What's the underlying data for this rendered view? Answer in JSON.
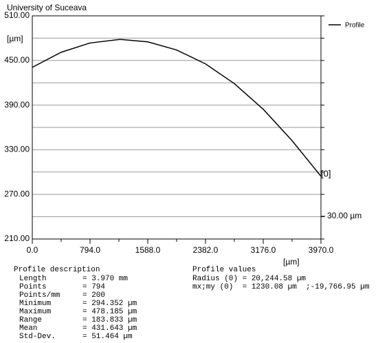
{
  "chart_data": {
    "type": "line",
    "title": "University of Suceava",
    "y_label": "[µm]",
    "x_label": "[µm]",
    "x": [
      0,
      397,
      794,
      1191,
      1230.08,
      1588,
      1985,
      2382,
      2779,
      3176,
      3573,
      3970
    ],
    "series": [
      {
        "name": "Profile",
        "color": "#000000",
        "values": [
          440.78,
          461.04,
          473.49,
          478.15,
          478.185,
          475.02,
          464.11,
          445.41,
          418.85,
          384.45,
          342.16,
          294.352
        ]
      }
    ],
    "xlim": [
      0,
      3970
    ],
    "xticks": [
      {
        "value": 0,
        "label": "0.0"
      },
      {
        "value": 794,
        "label": "794.0"
      },
      {
        "value": 1588,
        "label": "1588.0"
      },
      {
        "value": 2382,
        "label": "2382.0"
      },
      {
        "value": 3176,
        "label": "3176.0"
      },
      {
        "value": 3970,
        "label": "3970.0"
      }
    ],
    "xminor": [
      397,
      1191,
      1985,
      2779,
      3573
    ],
    "ylim": [
      210,
      510
    ],
    "yticks": [
      {
        "value": 210,
        "label": "210.00"
      },
      {
        "value": 270,
        "label": "270.00"
      },
      {
        "value": 330,
        "label": "330.00"
      },
      {
        "value": 390,
        "label": "390.00"
      },
      {
        "value": 450,
        "label": "450.00"
      },
      {
        "value": 510,
        "label": "510.00"
      }
    ],
    "ygrid": [
      240,
      300,
      360,
      420,
      480
    ],
    "grid": true,
    "legend": "top-right",
    "end_marker": "[0]",
    "scale_label": "30.00 µm",
    "description": {
      "title": "Profile description",
      "rows": [
        [
          "Length",
          "= 3.970 mm"
        ],
        [
          "Points",
          "= 794"
        ],
        [
          "Points/mm",
          "= 200"
        ],
        [
          "Minimum",
          "= 294.352 µm"
        ],
        [
          "Maximum",
          "= 478.185 µm"
        ],
        [
          "Range",
          "= 183.833 µm"
        ],
        [
          "Mean",
          "= 431.643 µm"
        ],
        [
          "Std-Dev.",
          "= 51.464 µm"
        ]
      ]
    },
    "profile_values": {
      "title": "Profile values",
      "rows": [
        "Radius (0) = 20,244.58 µm",
        "mx;my (0)  = 1230.08 µm  ;-19,766.95 µm"
      ]
    }
  }
}
